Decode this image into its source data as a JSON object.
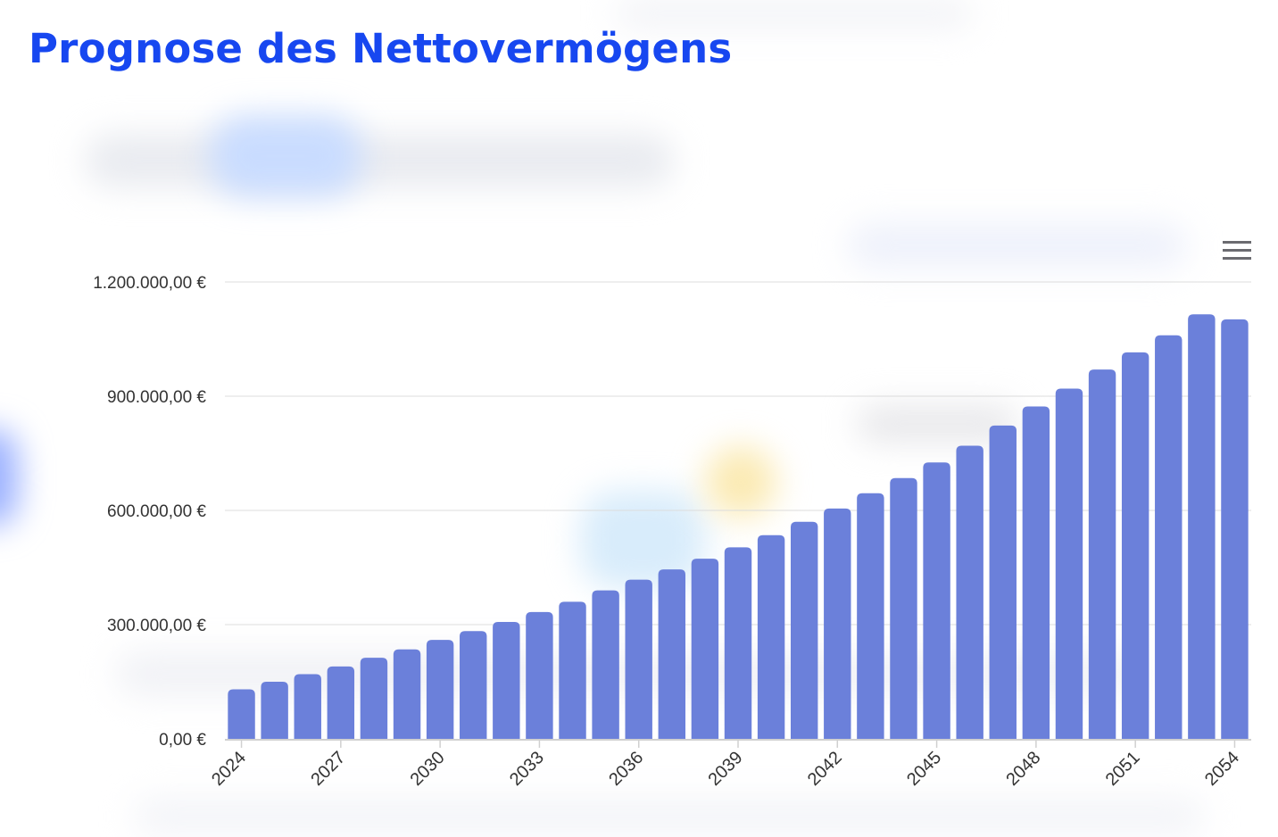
{
  "title": "Prognose des Nettovermögens",
  "colors": {
    "title": "#1747f0",
    "bar": "#6b80da",
    "grid": "#dcdcdc",
    "axis_text": "#333333"
  },
  "menu": {
    "icon": "hamburger-menu-icon"
  },
  "chart_data": {
    "type": "bar",
    "title": "",
    "xlabel": "",
    "ylabel": "",
    "grid": true,
    "ylim": [
      0,
      1200000
    ],
    "y_ticks": [
      0,
      300000,
      600000,
      900000,
      1200000
    ],
    "y_tick_labels": [
      "0,00 €",
      "300.000,00 €",
      "600.000,00 €",
      "900.000,00 €",
      "1.200.000,00 €"
    ],
    "x_tick_labels": [
      "2024",
      "2027",
      "2030",
      "2033",
      "2036",
      "2039",
      "2042",
      "2045",
      "2048",
      "2051",
      "2054"
    ],
    "categories": [
      "2024",
      "2025",
      "2026",
      "2027",
      "2028",
      "2029",
      "2030",
      "2031",
      "2032",
      "2033",
      "2034",
      "2035",
      "2036",
      "2037",
      "2038",
      "2039",
      "2040",
      "2041",
      "2042",
      "2043",
      "2044",
      "2045",
      "2046",
      "2047",
      "2048",
      "2049",
      "2050",
      "2051",
      "2052",
      "2053",
      "2054"
    ],
    "values": [
      130000,
      150000,
      170000,
      190000,
      213000,
      235000,
      260000,
      283000,
      307000,
      333000,
      360000,
      390000,
      418000,
      445000,
      473000,
      503000,
      535000,
      570000,
      605000,
      645000,
      685000,
      726000,
      770000,
      823000,
      873000,
      920000,
      970000,
      1015000,
      1060000,
      1115000,
      1102000
    ]
  }
}
